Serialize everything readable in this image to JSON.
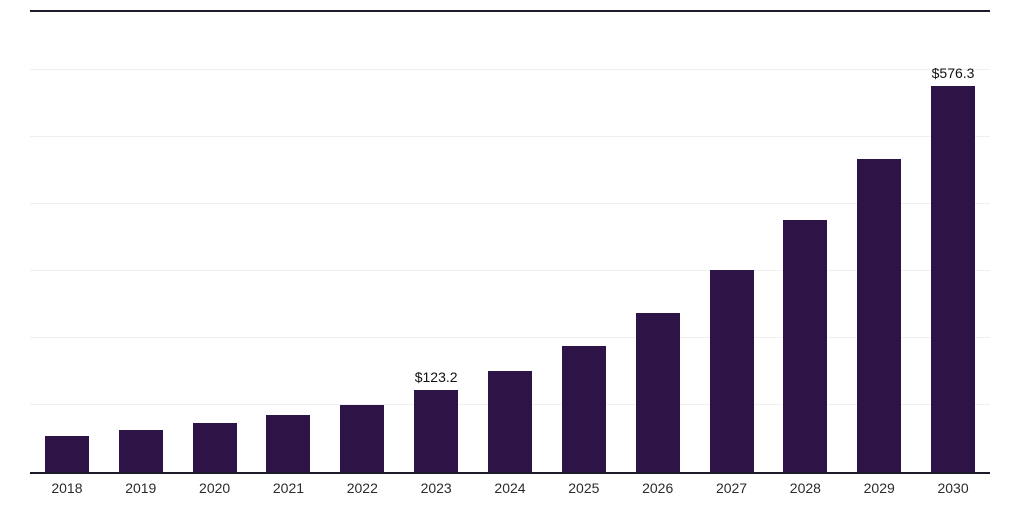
{
  "chart_data": {
    "type": "bar",
    "title": "",
    "xlabel": "",
    "ylabel": "",
    "categories": [
      "2018",
      "2019",
      "2020",
      "2021",
      "2022",
      "2023",
      "2024",
      "2025",
      "2026",
      "2027",
      "2028",
      "2029",
      "2030"
    ],
    "values": [
      54,
      63,
      73,
      85,
      100,
      123.2,
      151,
      188,
      237,
      302,
      376,
      467,
      576.3
    ],
    "data_labels": {
      "2023": "$123.2",
      "2030": "$576.3"
    },
    "ylim": [
      0,
      687
    ],
    "gridlines": [
      100,
      200,
      300,
      400,
      500,
      600
    ],
    "grid_on": true,
    "legend_position": "none",
    "bar_color": "#2e1347",
    "grid_color": "#efeff1",
    "axis_line_color": "#1c1b29",
    "label_color": "#111111",
    "tick_color": "#2b2b2b"
  }
}
